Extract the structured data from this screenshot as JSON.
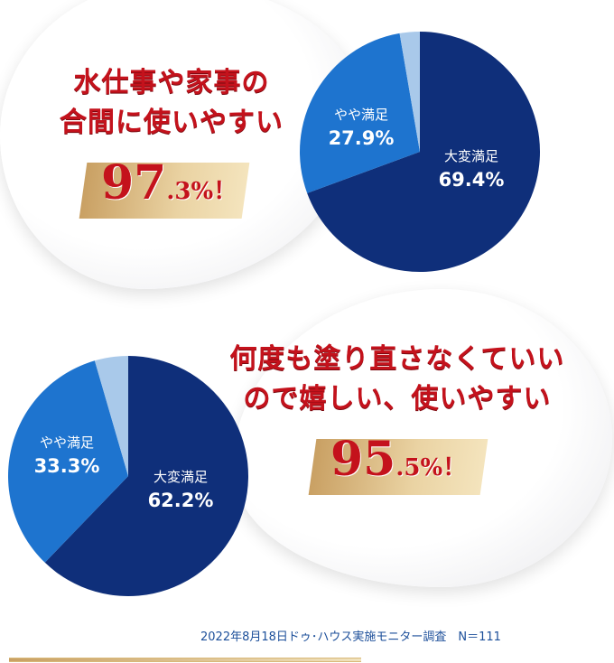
{
  "panel1": {
    "headline_line1": "水仕事や家事の",
    "headline_line2": "合間に使いやすい",
    "total_big": "97",
    "total_small": ".3%！"
  },
  "panel2": {
    "headline_line1": "何度も塗り直さなくていい",
    "headline_line2": "ので嬉しい、使いやすい",
    "total_big": "95",
    "total_small": ".5%！"
  },
  "chart_data": [
    {
      "type": "pie",
      "slices": [
        {
          "label": "大変満足",
          "value": 69.4,
          "display": "69.4%",
          "color": "#0f2f7a"
        },
        {
          "label": "やや満足",
          "value": 27.9,
          "display": "27.9%",
          "color": "#1e74cf"
        },
        {
          "label": "",
          "value": 2.7,
          "display": "",
          "color": "#a9c9ea"
        }
      ]
    },
    {
      "type": "pie",
      "slices": [
        {
          "label": "大変満足",
          "value": 62.2,
          "display": "62.2%",
          "color": "#0f2f7a"
        },
        {
          "label": "やや満足",
          "value": 33.3,
          "display": "33.3%",
          "color": "#1e74cf"
        },
        {
          "label": "",
          "value": 4.5,
          "display": "",
          "color": "#a9c9ea"
        }
      ]
    }
  ],
  "footnote": "2022年8月18日ドゥ･ハウス実施モニター調査　N＝111"
}
